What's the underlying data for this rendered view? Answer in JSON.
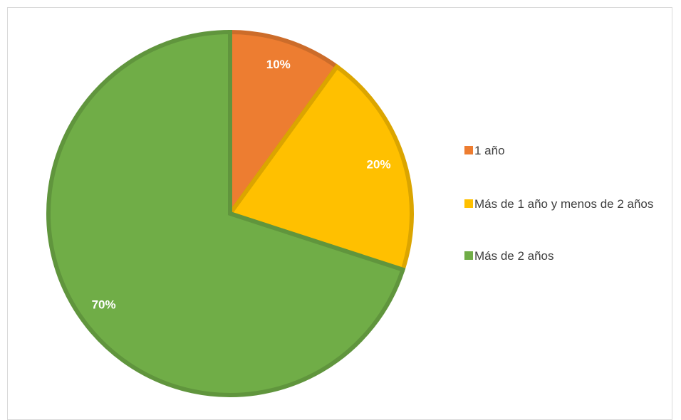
{
  "chart_data": {
    "type": "pie",
    "categories": [
      "1 año",
      "Más de 1 año y menos de 2 años",
      "Más de 2 años"
    ],
    "values": [
      10,
      20,
      70
    ],
    "value_labels": [
      "10%",
      "20%",
      "70%"
    ],
    "colors": [
      "#ED7D31",
      "#FFC000",
      "#70AD47"
    ],
    "legend": "right"
  }
}
